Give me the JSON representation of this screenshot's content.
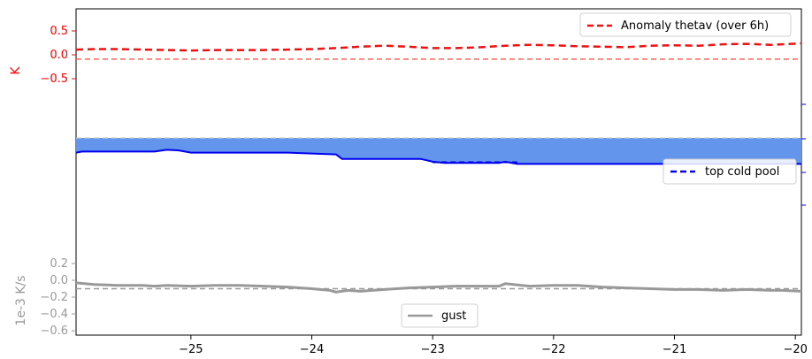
{
  "chart_data": {
    "type": "line",
    "x_axis": {
      "range": [
        -25.95,
        -19.95
      ],
      "ticks": [
        -25,
        -24,
        -23,
        -22,
        -21,
        -20
      ],
      "tick_labels": [
        "−25",
        "−24",
        "−23",
        "−22",
        "−21",
        "−20"
      ]
    },
    "panels": [
      {
        "name": "anomaly-thetav",
        "ylabel": "K",
        "ylabel_color": "#ff0000",
        "ylim": [
          -0.6,
          0.95
        ],
        "yticks": [
          0.5,
          0.0,
          -0.5
        ],
        "ytick_labels": [
          "0.5",
          "0.0",
          "−0.5"
        ],
        "tick_color": "#ff0000",
        "legend": {
          "loc": "upper right",
          "label": "Anomaly thetav (over 6h)"
        },
        "reference_line": {
          "y": -0.09,
          "color": "#f4665a",
          "style": "dashed"
        },
        "series": [
          {
            "name": "Anomaly thetav (over 6h)",
            "color": "#ee1111",
            "style": "dashed",
            "x": [
              -25.95,
              -25.8,
              -25.6,
              -25.4,
              -25.2,
              -25.0,
              -24.8,
              -24.6,
              -24.4,
              -24.2,
              -24.0,
              -23.8,
              -23.6,
              -23.4,
              -23.2,
              -23.0,
              -22.8,
              -22.6,
              -22.4,
              -22.2,
              -22.0,
              -21.8,
              -21.6,
              -21.4,
              -21.2,
              -21.0,
              -20.8,
              -20.6,
              -20.4,
              -20.2,
              -19.95
            ],
            "y": [
              0.11,
              0.12,
              0.12,
              0.11,
              0.1,
              0.09,
              0.1,
              0.1,
              0.1,
              0.11,
              0.12,
              0.14,
              0.17,
              0.19,
              0.17,
              0.14,
              0.14,
              0.16,
              0.19,
              0.21,
              0.2,
              0.18,
              0.17,
              0.16,
              0.19,
              0.2,
              0.19,
              0.22,
              0.23,
              0.21,
              0.24
            ]
          }
        ]
      },
      {
        "name": "cold-pool",
        "legend": {
          "loc": "right",
          "label": "top cold pool"
        },
        "fill_color": "#6495ed",
        "series": [
          {
            "name": "cold pool height",
            "color": "#0000ee",
            "style": "solid",
            "x": [
              -25.95,
              -25.9,
              -25.3,
              -25.2,
              -25.1,
              -25.0,
              -24.2,
              -23.8,
              -23.75,
              -23.1,
              -23.0,
              -22.9,
              -22.45,
              -22.4,
              -22.3,
              -21.5,
              -20.5,
              -19.95
            ],
            "y": [
              0.74,
              0.76,
              0.76,
              0.79,
              0.78,
              0.74,
              0.74,
              0.71,
              0.63,
              0.63,
              0.58,
              0.56,
              0.56,
              0.58,
              0.54,
              0.54,
              0.54,
              0.54
            ]
          }
        ],
        "top_cold_pool_segment": {
          "x": [
            -23.0,
            -22.3
          ],
          "y": 0.57,
          "color": "#0000ee",
          "style": "dashed"
        },
        "upper_boundary": {
          "y": 1.0,
          "color": "#cccccc",
          "style": "dashed"
        }
      },
      {
        "name": "gust",
        "ylabel": "1e-3 K/s",
        "ylabel_color": "#999999",
        "ylim": [
          -0.6,
          0.25
        ],
        "yticks": [
          0.2,
          0.0,
          -0.2,
          -0.4,
          -0.6
        ],
        "ytick_labels": [
          "0.2",
          "0.0",
          "−0.2",
          "−0.4",
          "−0.6"
        ],
        "tick_color": "#999999",
        "legend": {
          "loc": "lower center",
          "label": "gust"
        },
        "reference_line": {
          "y": -0.1,
          "color": "#999999",
          "style": "dashed"
        },
        "series": [
          {
            "name": "gust",
            "color": "#999999",
            "style": "solid",
            "x": [
              -25.95,
              -25.8,
              -25.6,
              -25.4,
              -25.3,
              -25.2,
              -25.0,
              -24.8,
              -24.6,
              -24.4,
              -24.2,
              -24.0,
              -23.85,
              -23.8,
              -23.7,
              -23.6,
              -23.4,
              -23.2,
              -23.0,
              -22.8,
              -22.6,
              -22.45,
              -22.4,
              -22.2,
              -22.0,
              -21.8,
              -21.6,
              -21.4,
              -21.2,
              -21.0,
              -20.8,
              -20.6,
              -20.4,
              -20.2,
              -20.1,
              -19.95
            ],
            "y": [
              -0.03,
              -0.05,
              -0.06,
              -0.06,
              -0.07,
              -0.06,
              -0.07,
              -0.06,
              -0.06,
              -0.07,
              -0.08,
              -0.1,
              -0.12,
              -0.14,
              -0.12,
              -0.13,
              -0.11,
              -0.09,
              -0.08,
              -0.07,
              -0.07,
              -0.07,
              -0.04,
              -0.07,
              -0.06,
              -0.06,
              -0.08,
              -0.09,
              -0.1,
              -0.11,
              -0.11,
              -0.12,
              -0.11,
              -0.12,
              -0.12,
              -0.13
            ]
          }
        ]
      }
    ],
    "right_axis_ticks_color": "#0000ee"
  }
}
